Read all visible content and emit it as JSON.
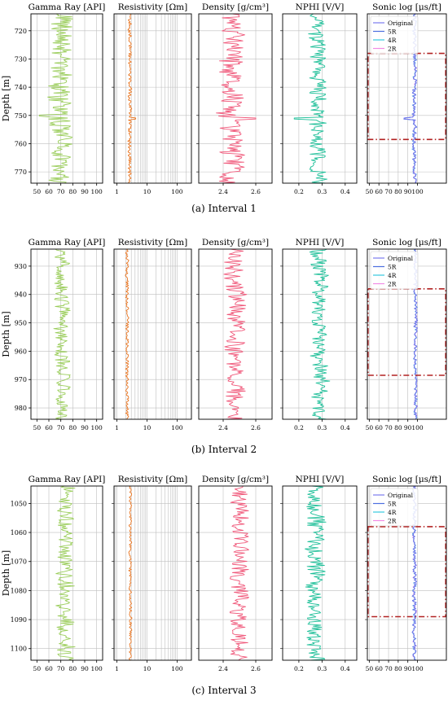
{
  "colors": {
    "gamma": "#9ACD5A",
    "resistivity": "#E8731E",
    "density": "#F0587A",
    "nphi": "#1DBF98",
    "original": "#7B7BEE",
    "r5": "#4C6FE0",
    "r4": "#34C9E0",
    "r2": "#F28BE6",
    "box": "#B22222",
    "grid": "#bfbfbf"
  },
  "chart_data": [
    {
      "type": "line",
      "caption": "(a) Interval 1",
      "ylabel": "Depth [m]",
      "ylim": [
        774,
        714
      ],
      "yticks": [
        720,
        730,
        740,
        750,
        760,
        770
      ],
      "seed": 11,
      "box_depth": [
        728,
        758.5
      ],
      "tracks": [
        {
          "key": "gamma",
          "title": "Gamma Ray [API]",
          "scale": "linear",
          "xlim": [
            45,
            105
          ],
          "xticks": [
            50,
            60,
            70,
            80,
            90,
            100
          ],
          "base": 70,
          "amp": 9,
          "spike_depth": 750,
          "spike_val": 52,
          "series": [
            {
              "name": "",
              "color_key": "gamma"
            }
          ]
        },
        {
          "key": "resistivity",
          "title": "Resistivity [Ωm]",
          "scale": "log",
          "xlim": [
            0.8,
            300
          ],
          "xticks": [
            1,
            10,
            100
          ],
          "base": 2.7,
          "amp": 0.35,
          "spike_depth": 751,
          "spike_val": 4.2,
          "series": [
            {
              "name": "",
              "color_key": "resistivity"
            }
          ]
        },
        {
          "key": "density",
          "title": "Density [g/cm³]",
          "scale": "linear",
          "xlim": [
            2.25,
            2.7
          ],
          "xticks": [
            2.4,
            2.6
          ],
          "base": 2.45,
          "amp": 0.07,
          "spike_depth": 751,
          "spike_val": 2.6,
          "series": [
            {
              "name": "",
              "color_key": "density"
            }
          ]
        },
        {
          "key": "nphi",
          "title": "NPHI [V/V]",
          "scale": "linear",
          "xlim": [
            0.13,
            0.45
          ],
          "xticks": [
            0.2,
            0.3,
            0.4
          ],
          "base": 0.285,
          "amp": 0.035,
          "spike_depth": 751,
          "spike_val": 0.18,
          "series": [
            {
              "name": "",
              "color_key": "nphi"
            }
          ]
        },
        {
          "key": "sonic",
          "title": "Sonic log [μs/ft]",
          "scale": "linear",
          "xlim": [
            48,
            130
          ],
          "xticks": [
            50,
            60,
            70,
            80,
            90,
            100
          ],
          "base": 97,
          "amp": 1.8,
          "spike_depth": 751,
          "spike_val": 86,
          "legend": true,
          "series": [
            {
              "name": "Original",
              "color_key": "original"
            },
            {
              "name": "5R",
              "color_key": "r5"
            },
            {
              "name": "4R",
              "color_key": "r4"
            },
            {
              "name": "2R",
              "color_key": "r2"
            }
          ]
        }
      ]
    },
    {
      "type": "line",
      "caption": "(b) Interval 2",
      "ylabel": "Depth [m]",
      "ylim": [
        984,
        924
      ],
      "yticks": [
        930,
        940,
        950,
        960,
        970,
        980
      ],
      "seed": 23,
      "box_depth": [
        938,
        968.5
      ],
      "tracks": [
        {
          "key": "gamma",
          "title": "Gamma Ray [API]",
          "scale": "linear",
          "xlim": [
            45,
            105
          ],
          "xticks": [
            50,
            60,
            70,
            80,
            90,
            100
          ],
          "base": 71,
          "amp": 6,
          "series": [
            {
              "name": "",
              "color_key": "gamma"
            }
          ]
        },
        {
          "key": "resistivity",
          "title": "Resistivity [Ωm]",
          "scale": "log",
          "xlim": [
            0.8,
            300
          ],
          "xticks": [
            1,
            10,
            100
          ],
          "base": 2.2,
          "amp": 0.25,
          "series": [
            {
              "name": "",
              "color_key": "resistivity"
            }
          ]
        },
        {
          "key": "density",
          "title": "Density [g/cm³]",
          "scale": "linear",
          "xlim": [
            2.25,
            2.7
          ],
          "xticks": [
            2.4,
            2.6
          ],
          "base": 2.47,
          "amp": 0.06,
          "series": [
            {
              "name": "",
              "color_key": "density"
            }
          ]
        },
        {
          "key": "nphi",
          "title": "NPHI [V/V]",
          "scale": "linear",
          "xlim": [
            0.13,
            0.45
          ],
          "xticks": [
            0.2,
            0.3,
            0.4
          ],
          "base": 0.29,
          "amp": 0.035,
          "series": [
            {
              "name": "",
              "color_key": "nphi"
            }
          ]
        },
        {
          "key": "sonic",
          "title": "Sonic log [μs/ft]",
          "scale": "linear",
          "xlim": [
            48,
            130
          ],
          "xticks": [
            50,
            60,
            70,
            80,
            90,
            100
          ],
          "base": 98,
          "amp": 1.6,
          "legend": true,
          "series": [
            {
              "name": "Original",
              "color_key": "original"
            },
            {
              "name": "5R",
              "color_key": "r5"
            },
            {
              "name": "4R",
              "color_key": "r4"
            },
            {
              "name": "2R",
              "color_key": "r2"
            }
          ]
        }
      ]
    },
    {
      "type": "line",
      "caption": "(c) Interval 3",
      "ylabel": "Depth [m]",
      "ylim": [
        1104,
        1044
      ],
      "yticks": [
        1050,
        1060,
        1070,
        1080,
        1090,
        1100
      ],
      "seed": 37,
      "box_depth": [
        1058,
        1089
      ],
      "tracks": [
        {
          "key": "gamma",
          "title": "Gamma Ray [API]",
          "scale": "linear",
          "xlim": [
            45,
            105
          ],
          "xticks": [
            50,
            60,
            70,
            80,
            90,
            100
          ],
          "base": 74,
          "amp": 7,
          "series": [
            {
              "name": "",
              "color_key": "gamma"
            }
          ]
        },
        {
          "key": "resistivity",
          "title": "Resistivity [Ωm]",
          "scale": "log",
          "xlim": [
            0.8,
            300
          ],
          "xticks": [
            1,
            10,
            100
          ],
          "base": 2.8,
          "amp": 0.3,
          "series": [
            {
              "name": "",
              "color_key": "resistivity"
            }
          ]
        },
        {
          "key": "density",
          "title": "Density [g/cm³]",
          "scale": "linear",
          "xlim": [
            2.25,
            2.7
          ],
          "xticks": [
            2.4,
            2.6
          ],
          "base": 2.5,
          "amp": 0.05,
          "series": [
            {
              "name": "",
              "color_key": "density"
            }
          ]
        },
        {
          "key": "nphi",
          "title": "NPHI [V/V]",
          "scale": "linear",
          "xlim": [
            0.13,
            0.45
          ],
          "xticks": [
            0.2,
            0.3,
            0.4
          ],
          "base": 0.27,
          "amp": 0.04,
          "series": [
            {
              "name": "",
              "color_key": "nphi"
            }
          ]
        },
        {
          "key": "sonic",
          "title": "Sonic log [μs/ft]",
          "scale": "linear",
          "xlim": [
            48,
            130
          ],
          "xticks": [
            50,
            60,
            70,
            80,
            90,
            100
          ],
          "base": 97,
          "amp": 1.7,
          "legend": true,
          "series": [
            {
              "name": "Original",
              "color_key": "original"
            },
            {
              "name": "5R",
              "color_key": "r5"
            },
            {
              "name": "4R",
              "color_key": "r4"
            },
            {
              "name": "2R",
              "color_key": "r2"
            }
          ]
        }
      ]
    }
  ]
}
